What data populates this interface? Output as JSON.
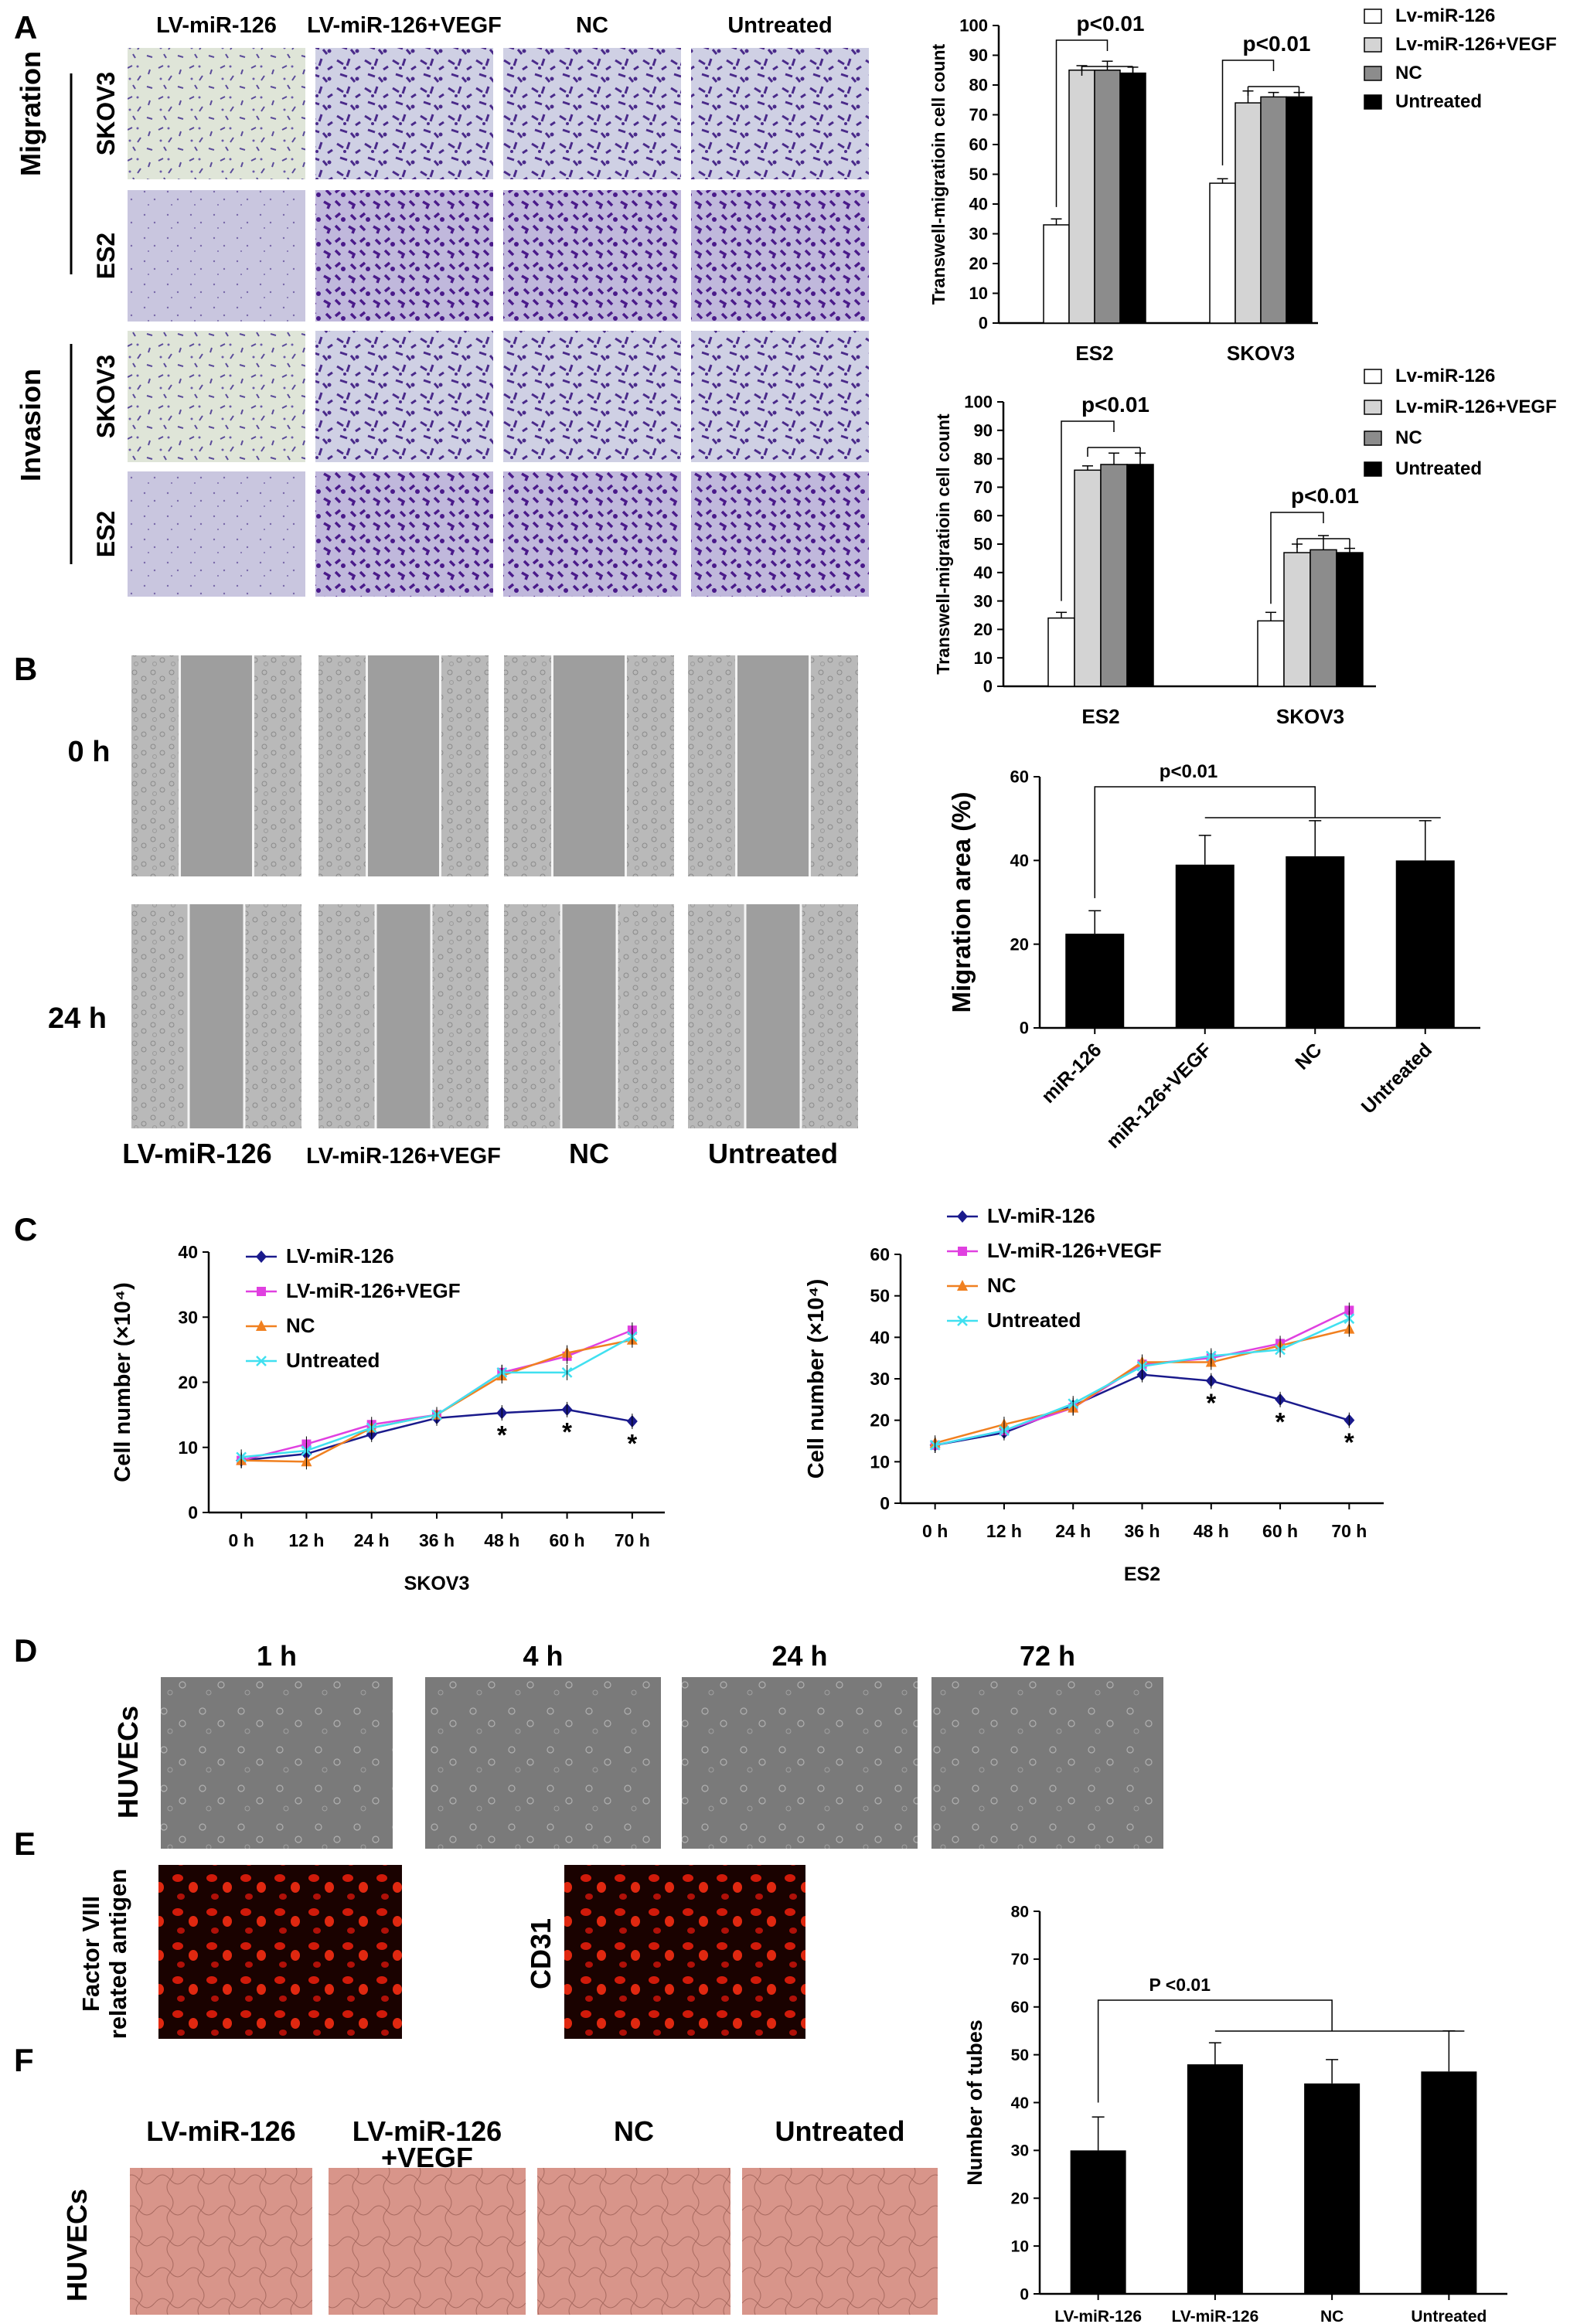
{
  "panels": {
    "A": "A",
    "B": "B",
    "C": "C",
    "D": "D",
    "E": "E",
    "F": "F"
  },
  "panelA": {
    "columns": [
      "LV-miR-126",
      "LV-miR-126+VEGF",
      "NC",
      "Untreated"
    ],
    "group_labels": [
      "Migration",
      "Invasion"
    ],
    "row_labels": [
      "SKOV3",
      "ES2",
      "SKOV3",
      "ES2"
    ]
  },
  "panelB": {
    "time_labels": [
      "0 h",
      "24 h"
    ],
    "columns": [
      "LV-miR-126",
      "LV-miR-126+VEGF",
      "NC",
      "Untreated"
    ]
  },
  "panelD": {
    "side_label": "HUVECs",
    "time_labels": [
      "1 h",
      "4 h",
      "24 h",
      "72 h"
    ]
  },
  "panelE": {
    "label1_line1": "Factor VIII",
    "label1_line2": "related antigen",
    "label2": "CD31"
  },
  "panelF": {
    "side_label": "HUVECs",
    "columns": [
      "LV-miR-126",
      "LV-miR-126\n+VEGF",
      "NC",
      "Untreated"
    ]
  },
  "colors": {
    "white_bar": "#ffffff",
    "lightgray_bar": "#d4d4d4",
    "gray_bar": "#8c8c8c",
    "black_bar": "#000000",
    "lv126": "#1a1a8c",
    "vegf": "#e040e0",
    "nc": "#f08020",
    "untreated": "#40e0f0",
    "purple_cells": "#5a3a9a",
    "red_fluor": "#e02010",
    "pink_tube": "#d88878"
  },
  "chart_data": [
    {
      "type": "bar",
      "id": "transwell-migration",
      "categories": [
        "ES2",
        "SKOV3"
      ],
      "series": [
        {
          "name": "Lv-miR-126",
          "values": [
            33,
            47
          ],
          "errors": [
            2,
            1.5
          ]
        },
        {
          "name": "Lv-miR-126+VEGF",
          "values": [
            85,
            74
          ],
          "errors": [
            1.5,
            4
          ]
        },
        {
          "name": "NC",
          "values": [
            85,
            76
          ],
          "errors": [
            3,
            1.5
          ]
        },
        {
          "name": "Untreated",
          "values": [
            84,
            76
          ],
          "errors": [
            2,
            1.5
          ]
        }
      ],
      "ylabel": "Transwell-migratioin cell count",
      "ylim": [
        0,
        100
      ],
      "yticks": [
        0,
        10,
        20,
        30,
        40,
        50,
        60,
        70,
        80,
        90,
        100
      ],
      "annotations": [
        "p<0.01",
        "p<0.01"
      ],
      "legend": "top-right"
    },
    {
      "type": "bar",
      "id": "transwell-invasion",
      "categories": [
        "ES2",
        "SKOV3"
      ],
      "series": [
        {
          "name": "Lv-miR-126",
          "values": [
            24,
            23
          ],
          "errors": [
            2,
            3
          ]
        },
        {
          "name": "Lv-miR-126+VEGF",
          "values": [
            76,
            47
          ],
          "errors": [
            1.5,
            3
          ]
        },
        {
          "name": "NC",
          "values": [
            78,
            48
          ],
          "errors": [
            4,
            5
          ]
        },
        {
          "name": "Untreated",
          "values": [
            78,
            47
          ],
          "errors": [
            4,
            1.5
          ]
        }
      ],
      "ylabel": "Transwell-migratioin cell count",
      "ylim": [
        0,
        100
      ],
      "yticks": [
        0,
        10,
        20,
        30,
        40,
        50,
        60,
        70,
        80,
        90,
        100
      ],
      "annotations": [
        "p<0.01",
        "p<0.01"
      ],
      "legend": "top-right"
    },
    {
      "type": "bar",
      "id": "migration-area",
      "categories": [
        "miR-126",
        "miR-126+VEGF",
        "NC",
        "Untreated"
      ],
      "values": [
        22.5,
        39,
        41,
        40
      ],
      "errors": [
        5.5,
        7,
        8.5,
        9.5
      ],
      "ylabel": "Migration area (%)",
      "ylim": [
        0,
        60
      ],
      "yticks": [
        0,
        20,
        40,
        60
      ],
      "annotations": [
        "p<0.01"
      ]
    },
    {
      "type": "line",
      "id": "growth-skov3",
      "x": [
        "0 h",
        "12 h",
        "24 h",
        "36 h",
        "48 h",
        "60 h",
        "70 h"
      ],
      "series": [
        {
          "name": "LV-miR-126",
          "values": [
            8,
            9,
            12,
            14.5,
            15.3,
            15.8,
            14
          ]
        },
        {
          "name": "LV-miR-126+VEGF",
          "values": [
            8,
            10.5,
            13.5,
            15,
            21.5,
            24,
            28
          ]
        },
        {
          "name": "NC",
          "values": [
            8,
            7.8,
            13,
            15,
            21,
            24.5,
            26.5
          ]
        },
        {
          "name": "Untreated",
          "values": [
            8.5,
            9.5,
            13,
            15,
            21.5,
            21.5,
            27
          ]
        }
      ],
      "xlabel": "SKOV3",
      "ylabel": "Cell number (×10⁴)",
      "ylim": [
        0,
        40
      ],
      "yticks": [
        0,
        10,
        20,
        30,
        40
      ],
      "significant": [
        "48 h",
        "60 h",
        "70 h"
      ],
      "annotations": [
        "*",
        "*",
        "*"
      ],
      "legend": "top-left"
    },
    {
      "type": "line",
      "id": "growth-es2",
      "x": [
        "0 h",
        "12 h",
        "24 h",
        "36 h",
        "48 h",
        "60 h",
        "70 h"
      ],
      "series": [
        {
          "name": "LV-miR-126",
          "values": [
            14,
            17,
            23.5,
            31,
            29.5,
            25,
            20
          ]
        },
        {
          "name": "LV-miR-126+VEGF",
          "values": [
            14,
            17.5,
            23,
            33.5,
            35,
            38.5,
            46.5
          ]
        },
        {
          "name": "NC",
          "values": [
            14.5,
            19,
            23,
            34,
            34,
            38,
            42
          ]
        },
        {
          "name": "Untreated",
          "values": [
            14,
            17.5,
            24,
            33,
            35.5,
            37,
            44.5
          ]
        }
      ],
      "xlabel": "ES2",
      "ylabel": "Cell number (×10⁴)",
      "ylim": [
        0,
        60
      ],
      "yticks": [
        0,
        10,
        20,
        30,
        40,
        50,
        60
      ],
      "significant": [
        "48 h",
        "60 h",
        "70 h"
      ],
      "annotations": [
        "*",
        "*",
        "*"
      ],
      "legend": "top-left"
    },
    {
      "type": "bar",
      "id": "tubes",
      "categories": [
        "LV-miR-126",
        "LV-miR-126\n+VEGF",
        "NC",
        "Untreated"
      ],
      "values": [
        30,
        48,
        44,
        46.5
      ],
      "errors": [
        7,
        4.5,
        5,
        8.5
      ],
      "ylabel": "Number of tubes",
      "ylim": [
        0,
        80
      ],
      "yticks": [
        0,
        10,
        20,
        30,
        40,
        50,
        60,
        70,
        80
      ],
      "annotations": [
        "P <0.01"
      ]
    }
  ]
}
